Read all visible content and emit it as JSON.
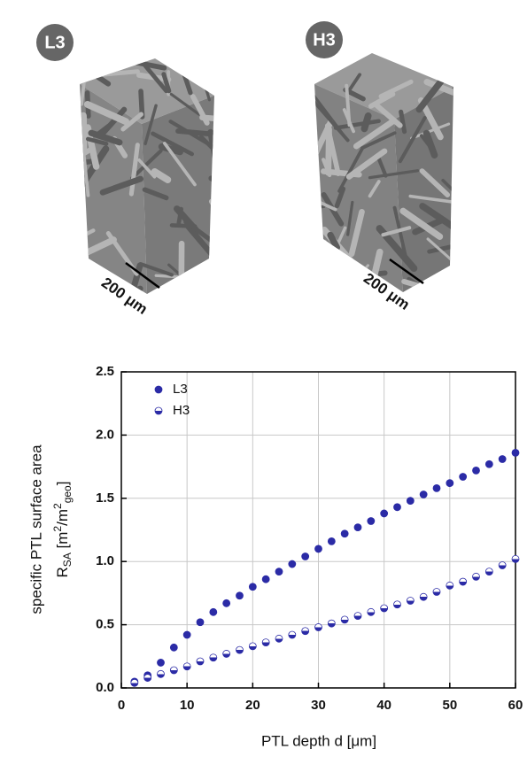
{
  "panels": [
    {
      "label": "L3",
      "scale": "200 μm"
    },
    {
      "label": "H3",
      "scale": "200 μm"
    }
  ],
  "chart_data": {
    "type": "scatter",
    "x_label": "PTL depth d [μm]",
    "y_label": "specific PTL surface area",
    "y_label_unit_parts": [
      "R",
      "SA",
      " [m",
      "2",
      "/m",
      "2",
      "geo",
      "]"
    ],
    "x": [
      2,
      4,
      6,
      8,
      10,
      12,
      14,
      16,
      18,
      20,
      22,
      24,
      26,
      28,
      30,
      32,
      34,
      36,
      38,
      40,
      42,
      44,
      46,
      48,
      50,
      52,
      54,
      56,
      58,
      60
    ],
    "series": [
      {
        "name": "L3",
        "color": "#2b2ba6",
        "marker": "filled",
        "values": [
          0.05,
          0.1,
          0.2,
          0.32,
          0.42,
          0.52,
          0.6,
          0.67,
          0.73,
          0.8,
          0.86,
          0.92,
          0.98,
          1.04,
          1.1,
          1.16,
          1.22,
          1.27,
          1.32,
          1.38,
          1.43,
          1.48,
          1.53,
          1.58,
          1.62,
          1.67,
          1.72,
          1.77,
          1.81,
          1.86
        ]
      },
      {
        "name": "H3",
        "color": "#2b2ba6",
        "marker": "half",
        "values": [
          0.04,
          0.08,
          0.11,
          0.14,
          0.17,
          0.21,
          0.24,
          0.27,
          0.3,
          0.33,
          0.36,
          0.39,
          0.42,
          0.45,
          0.48,
          0.51,
          0.54,
          0.57,
          0.6,
          0.63,
          0.66,
          0.69,
          0.72,
          0.76,
          0.81,
          0.84,
          0.88,
          0.92,
          0.97,
          1.02
        ]
      }
    ],
    "xlim": [
      0,
      60
    ],
    "xticks": [
      0,
      10,
      20,
      30,
      40,
      50,
      60
    ],
    "ylim": [
      0,
      2.5
    ],
    "yticks": [
      {
        "value": 0,
        "label": "0.0"
      },
      0.5,
      {
        "value": 1,
        "label": "1.0"
      },
      1.5,
      {
        "value": 2,
        "label": "2.0"
      },
      2.5
    ],
    "grid": true,
    "legend": "upper left"
  }
}
